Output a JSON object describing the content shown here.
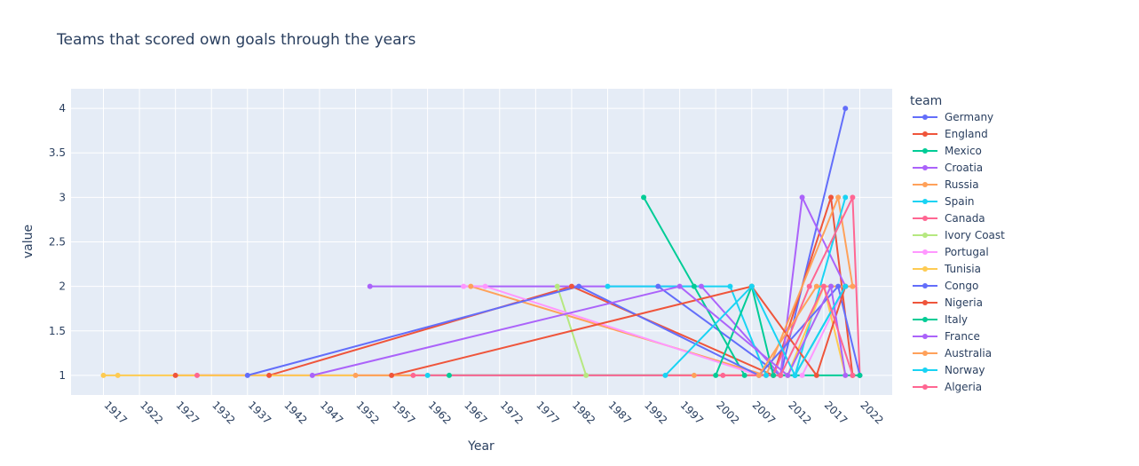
{
  "chart_data": {
    "type": "line",
    "title": "Teams that scored own goals through the years",
    "xlabel": "Year",
    "ylabel": "value",
    "xlim": [
      1912.5,
      2026.5
    ],
    "ylim": [
      0.78,
      4.22
    ],
    "x_ticks": [
      1917,
      1922,
      1927,
      1932,
      1937,
      1942,
      1947,
      1952,
      1957,
      1962,
      1967,
      1972,
      1977,
      1982,
      1987,
      1992,
      1997,
      2002,
      2007,
      2012,
      2017,
      2022
    ],
    "y_ticks": [
      1,
      1.5,
      2,
      2.5,
      3,
      3.5,
      4
    ],
    "y_tick_labels": [
      "1",
      "1.5",
      "2",
      "2.5",
      "3",
      "3.5",
      "4"
    ],
    "grid": true,
    "legend_title": "team",
    "legend_position": "right",
    "series": [
      {
        "name": "Germany",
        "color": "#636efa",
        "x": [
          1994,
          2011,
          2020
        ],
        "y": [
          2,
          1,
          4
        ]
      },
      {
        "name": "England",
        "color": "#EF553B",
        "x": [
          1927,
          1940,
          1982,
          2010,
          2018,
          2021
        ],
        "y": [
          1,
          1,
          2,
          1,
          3,
          1
        ]
      },
      {
        "name": "Mexico",
        "color": "#00cc96",
        "x": [
          1992,
          1999,
          2006,
          2013,
          2020
        ],
        "y": [
          3,
          2,
          1,
          1,
          2
        ]
      },
      {
        "name": "Croatia",
        "color": "#ab63fa",
        "x": [
          1954,
          2000,
          2011,
          2014,
          2020
        ],
        "y": [
          2,
          2,
          1,
          3,
          2
        ]
      },
      {
        "name": "Russia",
        "color": "#FFA15A",
        "x": [
          1968,
          2009,
          2019,
          2021
        ],
        "y": [
          2,
          1,
          3,
          2
        ]
      },
      {
        "name": "Spain",
        "color": "#19d3f3",
        "x": [
          1987,
          2004,
          2009,
          2013,
          2020
        ],
        "y": [
          2,
          2,
          1,
          1,
          3
        ]
      },
      {
        "name": "Canada",
        "color": "#FF6692",
        "x": [
          1930,
          2010,
          2015,
          2021,
          2022
        ],
        "y": [
          1,
          1,
          2,
          3,
          1
        ]
      },
      {
        "name": "Ivory Coast",
        "color": "#B6E880",
        "x": [
          1980,
          1984,
          2012,
          2018
        ],
        "y": [
          2,
          1,
          1,
          2
        ]
      },
      {
        "name": "Portugal",
        "color": "#FF97FF",
        "x": [
          1967,
          1970,
          2008,
          2014,
          2020
        ],
        "y": [
          2,
          2,
          1,
          1,
          2
        ]
      },
      {
        "name": "Tunisia",
        "color": "#FECB52",
        "x": [
          1917,
          1919,
          2012,
          2017,
          2020
        ],
        "y": [
          1,
          1,
          1,
          2,
          1
        ]
      },
      {
        "name": "Congo",
        "color": "#636efa",
        "x": [
          1937,
          1983,
          2008,
          2019,
          2022
        ],
        "y": [
          1,
          2,
          1,
          2,
          1
        ]
      },
      {
        "name": "Nigeria",
        "color": "#EF553B",
        "x": [
          1957,
          2007,
          2016,
          2020
        ],
        "y": [
          1,
          2,
          1,
          2
        ]
      },
      {
        "name": "Italy",
        "color": "#00cc96",
        "x": [
          1965,
          2002,
          2007,
          2010,
          2022
        ],
        "y": [
          1,
          1,
          2,
          1,
          1
        ]
      },
      {
        "name": "France",
        "color": "#ab63fa",
        "x": [
          1946,
          1997,
          2012,
          2018,
          2020
        ],
        "y": [
          1,
          2,
          1,
          2,
          1
        ]
      },
      {
        "name": "Australia",
        "color": "#FFA15A",
        "x": [
          1952,
          1999,
          2008,
          2016,
          2021
        ],
        "y": [
          1,
          1,
          1,
          2,
          2
        ]
      },
      {
        "name": "Norway",
        "color": "#19d3f3",
        "x": [
          1962,
          1995,
          2007,
          2013,
          2020
        ],
        "y": [
          1,
          1,
          2,
          1,
          2
        ]
      },
      {
        "name": "Algeria",
        "color": "#FF6692",
        "x": [
          1960,
          2003,
          2011,
          2017,
          2021
        ],
        "y": [
          1,
          1,
          1,
          2,
          1
        ]
      }
    ]
  }
}
